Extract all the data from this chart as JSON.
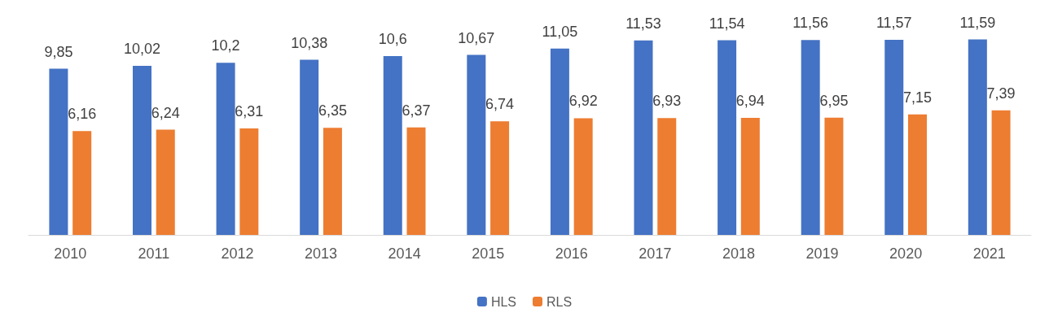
{
  "chart_data": {
    "type": "bar",
    "categories": [
      "2010",
      "2011",
      "2012",
      "2013",
      "2014",
      "2015",
      "2016",
      "2017",
      "2018",
      "2019",
      "2020",
      "2021"
    ],
    "series": [
      {
        "name": "HLS",
        "color": "#4472c4",
        "values": [
          9.85,
          10.02,
          10.2,
          10.38,
          10.6,
          10.67,
          11.05,
          11.53,
          11.54,
          11.56,
          11.57,
          11.59
        ],
        "value_labels": [
          "9,85",
          "10,02",
          "10,2",
          "10,38",
          "10,6",
          "10,67",
          "11,05",
          "11,53",
          "11,54",
          "11,56",
          "11,57",
          "11,59"
        ]
      },
      {
        "name": "RLS",
        "color": "#ed7d31",
        "values": [
          6.16,
          6.24,
          6.31,
          6.35,
          6.37,
          6.74,
          6.92,
          6.93,
          6.94,
          6.95,
          7.15,
          7.39
        ],
        "value_labels": [
          "6,16",
          "6,24",
          "6,31",
          "6,35",
          "6,37",
          "6,74",
          "6,92",
          "6,93",
          "6,94",
          "6,95",
          "7,15",
          "7,39"
        ]
      }
    ],
    "legend": "bottom"
  }
}
